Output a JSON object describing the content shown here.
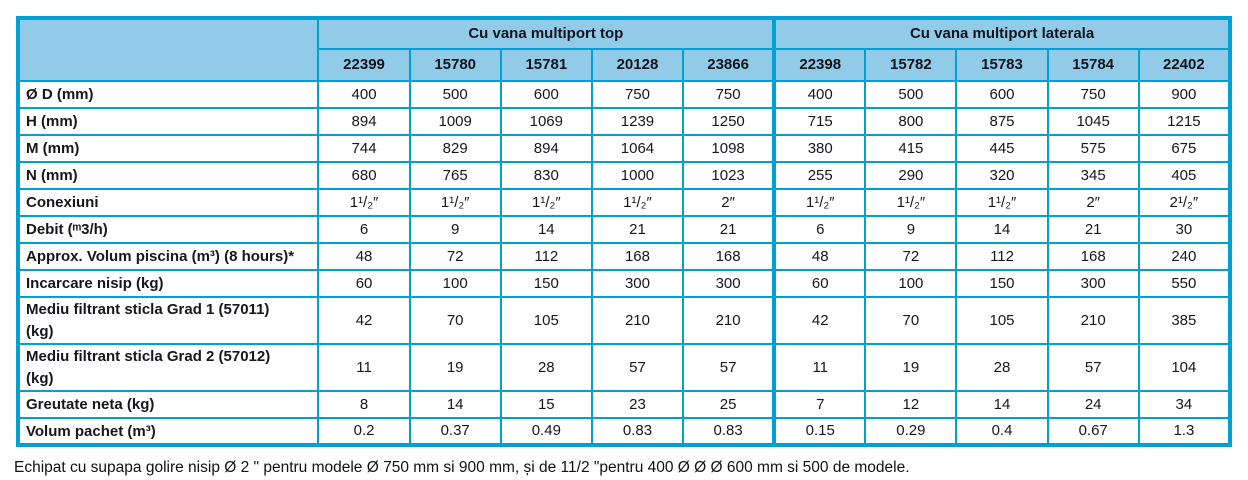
{
  "colors": {
    "border": "#009fd4",
    "header_bg": "#92cbe8"
  },
  "table": {
    "groups": [
      {
        "label": "Cu vana multiport top",
        "models": [
          "22399",
          "15780",
          "15781",
          "20128",
          "23866"
        ]
      },
      {
        "label": "Cu vana multiport laterala",
        "models": [
          "22398",
          "15782",
          "15783",
          "15784",
          "22402"
        ]
      }
    ],
    "rows": [
      {
        "label": "Ø D (mm)",
        "values": [
          "400",
          "500",
          "600",
          "750",
          "750",
          "400",
          "500",
          "600",
          "750",
          "900"
        ]
      },
      {
        "label": "H (mm)",
        "values": [
          "894",
          "1009",
          "1069",
          "1239",
          "1250",
          "715",
          "800",
          "875",
          "1045",
          "1215"
        ]
      },
      {
        "label": "M (mm)",
        "values": [
          "744",
          "829",
          "894",
          "1064",
          "1098",
          "380",
          "415",
          "445",
          "575",
          "675"
        ]
      },
      {
        "label": "N (mm)",
        "values": [
          "680",
          "765",
          "830",
          "1000",
          "1023",
          "255",
          "290",
          "320",
          "345",
          "405"
        ]
      },
      {
        "label": "Conexiuni",
        "values": [
          "1¹/₂″",
          "1¹/₂″",
          "1¹/₂″",
          "1¹/₂″",
          "2″",
          "1¹/₂″",
          "1¹/₂″",
          "1¹/₂″",
          "2″",
          "2¹/₂″"
        ]
      },
      {
        "label": "Debit (ᵐ3/h)",
        "values": [
          "6",
          "9",
          "14",
          "21",
          "21",
          "6",
          "9",
          "14",
          "21",
          "30"
        ]
      },
      {
        "label": "Approx. Volum piscina (m³) (8 hours)*",
        "values": [
          "48",
          "72",
          "112",
          "168",
          "168",
          "48",
          "72",
          "112",
          "168",
          "240"
        ]
      },
      {
        "label": "Incarcare nisip (kg)",
        "values": [
          "60",
          "100",
          "150",
          "300",
          "300",
          "60",
          "100",
          "150",
          "300",
          "550"
        ]
      },
      {
        "label": "Mediu filtrant sticla Grad 1  (57011)\n(kg)",
        "tall": true,
        "values": [
          "42",
          "70",
          "105",
          "210",
          "210",
          "42",
          "70",
          "105",
          "210",
          "385"
        ]
      },
      {
        "label": "Mediu filtrant sticla Grad 2  (57012)\n(kg)",
        "tall": true,
        "values": [
          "11",
          "19",
          "28",
          "57",
          "57",
          "11",
          "19",
          "28",
          "57",
          "104"
        ]
      },
      {
        "label": "Greutate neta  (kg)",
        "values": [
          "8",
          "14",
          "15",
          "23",
          "25",
          "7",
          "12",
          "14",
          "24",
          "34"
        ]
      },
      {
        "label": "Volum pachet (m³)",
        "values": [
          "0.2",
          "0.37",
          "0.49",
          "0.83",
          "0.83",
          "0.15",
          "0.29",
          "0.4",
          "0.67",
          "1.3"
        ]
      }
    ]
  },
  "footnote": "Echipat cu supapa golire nisip Ø 2 \" pentru modele  Ø 750 mm si 900 mm, și de 11/2 \"pentru 400 Ø Ø Ø 600 mm si 500 de modele."
}
